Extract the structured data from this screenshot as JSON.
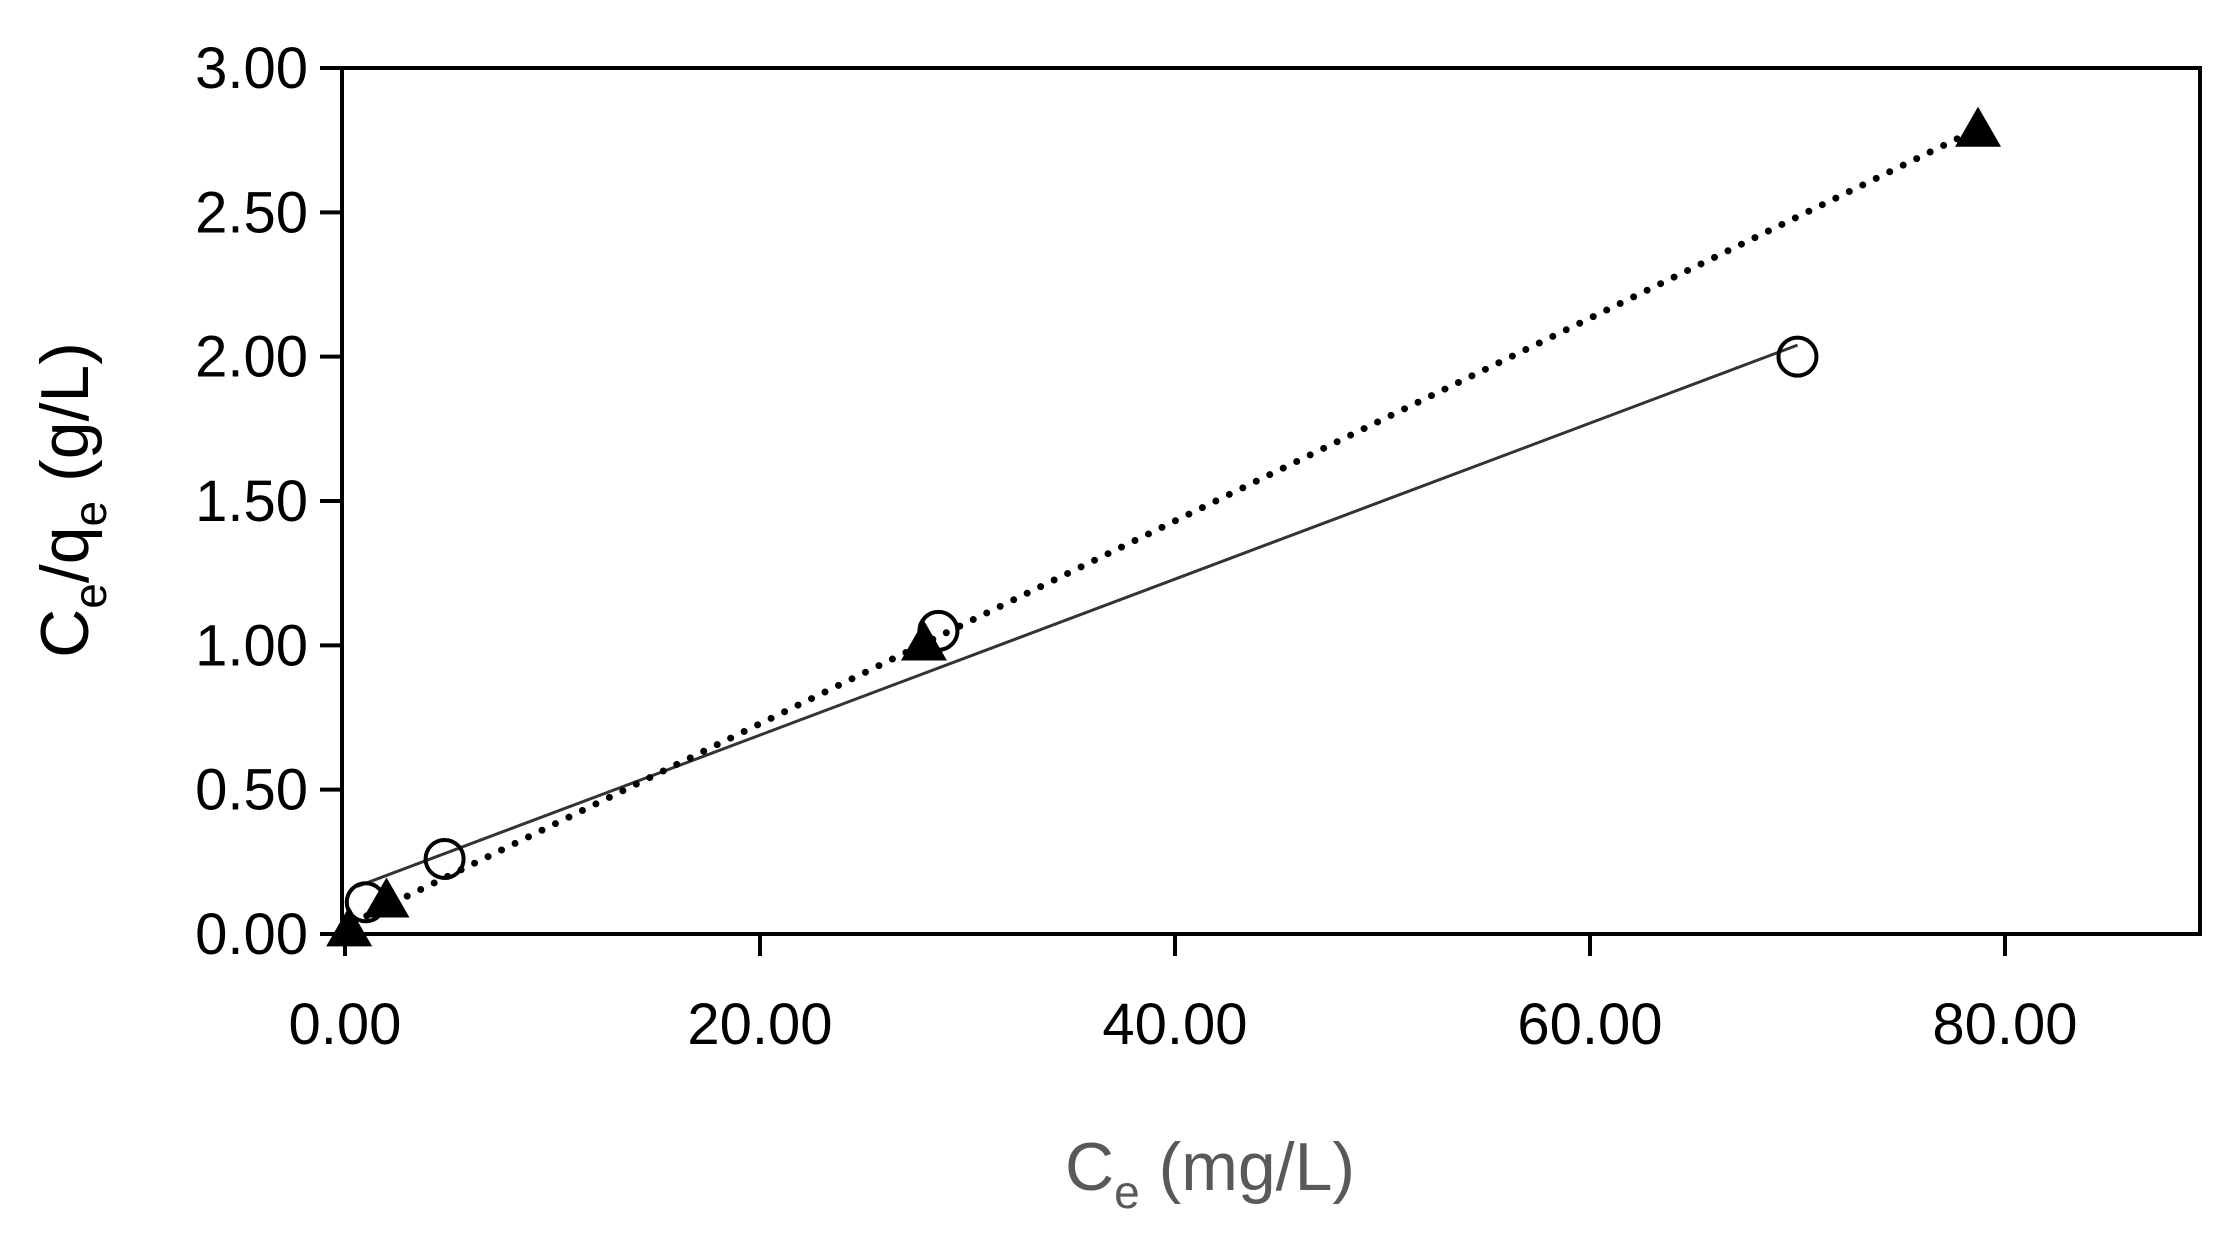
{
  "chart_data": {
    "type": "scatter",
    "title": "",
    "xlabel": {
      "main": "C",
      "sub": "e",
      "rest": " (mg/L)"
    },
    "ylabel": {
      "main1": "C",
      "sub1": "e",
      "mid": "/q",
      "sub2": "e",
      "rest": " (g/L)"
    },
    "xlim": [
      0,
      90
    ],
    "ylim": [
      0,
      3
    ],
    "x_ticks": [
      "0.00",
      "20.00",
      "40.00",
      "60.00",
      "80.00"
    ],
    "x_tick_values": [
      0,
      20,
      40,
      60,
      80
    ],
    "y_ticks": [
      "0.00",
      "0.50",
      "1.00",
      "1.50",
      "2.00",
      "2.50",
      "3.00"
    ],
    "y_tick_values": [
      0,
      0.5,
      1.0,
      1.5,
      2.0,
      2.5,
      3.0
    ],
    "grid": false,
    "legend": "none",
    "series": [
      {
        "marker": "open-circle",
        "x": [
          1.0,
          4.8,
          28.6,
          70.0
        ],
        "y": [
          0.11,
          0.26,
          1.05,
          2.0
        ],
        "fit": {
          "style": "solid",
          "x": [
            0.6,
            70.0
          ],
          "y": [
            0.165,
            2.04
          ]
        }
      },
      {
        "marker": "filled-triangle",
        "x": [
          0.2,
          2.0,
          27.9,
          78.7
        ],
        "y": [
          0.01,
          0.11,
          1.0,
          2.78
        ],
        "fit": {
          "style": "dotted",
          "x": [
            0.4,
            78.7
          ],
          "y": [
            0.04,
            2.79
          ]
        }
      }
    ],
    "colors": {
      "axis": "#000000",
      "tick_text": "#000000",
      "xlabel_text": "#595959",
      "ylabel_text": "#000000",
      "fit_solid": "#333333",
      "fit_dotted": "#000000"
    }
  }
}
